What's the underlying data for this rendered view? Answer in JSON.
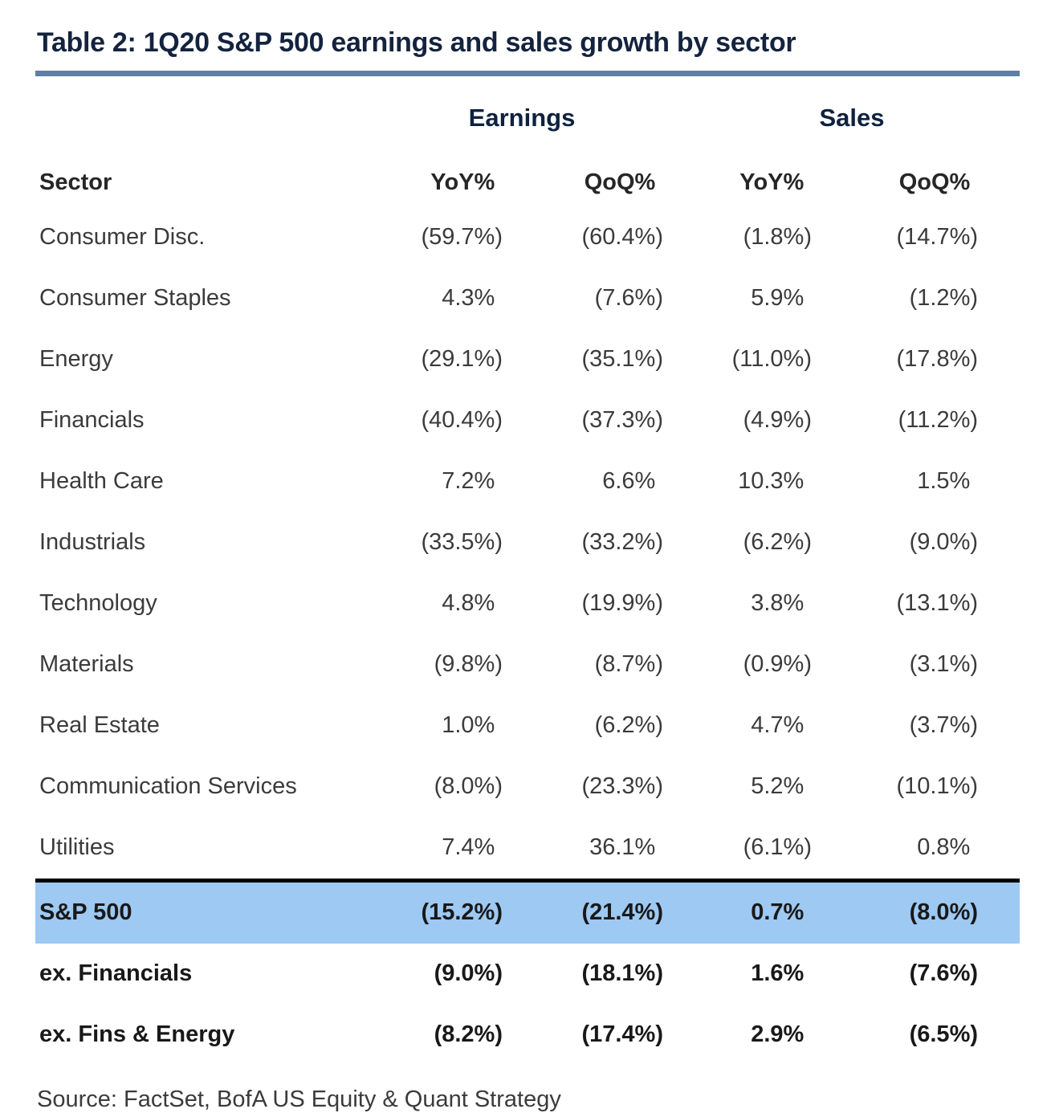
{
  "page": {
    "title": "Table 2: 1Q20 S&P 500 earnings and sales growth by sector",
    "source": "Source: FactSet, BofA US Equity & Quant Strategy"
  },
  "table": {
    "group_headers": [
      "Earnings",
      "Sales"
    ],
    "columns": [
      "Sector",
      "YoY%",
      "QoQ%",
      "YoY%",
      "QoQ%"
    ],
    "rows": [
      {
        "sector": "Consumer Disc.",
        "values": [
          "(59.7%)",
          "(60.4%)",
          "(1.8%)",
          "(14.7%)"
        ],
        "style": "normal"
      },
      {
        "sector": "Consumer Staples",
        "values": [
          "4.3%",
          "(7.6%)",
          "5.9%",
          "(1.2%)"
        ],
        "style": "normal"
      },
      {
        "sector": "Energy",
        "values": [
          "(29.1%)",
          "(35.1%)",
          "(11.0%)",
          "(17.8%)"
        ],
        "style": "normal"
      },
      {
        "sector": "Financials",
        "values": [
          "(40.4%)",
          "(37.3%)",
          "(4.9%)",
          "(11.2%)"
        ],
        "style": "normal"
      },
      {
        "sector": "Health Care",
        "values": [
          "7.2%",
          "6.6%",
          "10.3%",
          "1.5%"
        ],
        "style": "normal"
      },
      {
        "sector": "Industrials",
        "values": [
          "(33.5%)",
          "(33.2%)",
          "(6.2%)",
          "(9.0%)"
        ],
        "style": "normal"
      },
      {
        "sector": "Technology",
        "values": [
          "4.8%",
          "(19.9%)",
          "3.8%",
          "(13.1%)"
        ],
        "style": "normal"
      },
      {
        "sector": "Materials",
        "values": [
          "(9.8%)",
          "(8.7%)",
          "(0.9%)",
          "(3.1%)"
        ],
        "style": "normal"
      },
      {
        "sector": "Real Estate",
        "values": [
          "1.0%",
          "(6.2%)",
          "4.7%",
          "(3.7%)"
        ],
        "style": "normal"
      },
      {
        "sector": "Communication Services",
        "values": [
          "(8.0%)",
          "(23.3%)",
          "5.2%",
          "(10.1%)"
        ],
        "style": "normal"
      },
      {
        "sector": "Utilities",
        "values": [
          "7.4%",
          "36.1%",
          "(6.1%)",
          "0.8%"
        ],
        "style": "normal"
      },
      {
        "sector": "S&P 500",
        "values": [
          "(15.2%)",
          "(21.4%)",
          "0.7%",
          "(8.0%)"
        ],
        "style": "highlight"
      },
      {
        "sector": "ex. Financials",
        "values": [
          "(9.0%)",
          "(18.1%)",
          "1.6%",
          "(7.6%)"
        ],
        "style": "bold"
      },
      {
        "sector": "ex. Fins & Energy",
        "values": [
          "(8.2%)",
          "(17.4%)",
          "2.9%",
          "(6.5%)"
        ],
        "style": "bold"
      }
    ]
  },
  "colors": {
    "title_navy": "#14233e",
    "group_header_navy": "#0e2240",
    "rule_blue": "#5e7ea6",
    "highlight_blue": "#9dc9f3",
    "highlight_border": "#000000",
    "body_text": "#3b3b3b"
  },
  "chart_data": {
    "type": "table",
    "title": "Table 2: 1Q20 S&P 500 earnings and sales growth by sector",
    "column_groups": [
      "Earnings",
      "Sales"
    ],
    "columns": [
      "Sector",
      "Earnings YoY%",
      "Earnings QoQ%",
      "Sales YoY%",
      "Sales QoQ%"
    ],
    "units": "percent, parentheses denote negative values",
    "rows": [
      {
        "sector": "Consumer Disc.",
        "earnings_yoy": -59.7,
        "earnings_qoq": -60.4,
        "sales_yoy": -1.8,
        "sales_qoq": -14.7
      },
      {
        "sector": "Consumer Staples",
        "earnings_yoy": 4.3,
        "earnings_qoq": -7.6,
        "sales_yoy": 5.9,
        "sales_qoq": -1.2
      },
      {
        "sector": "Energy",
        "earnings_yoy": -29.1,
        "earnings_qoq": -35.1,
        "sales_yoy": -11.0,
        "sales_qoq": -17.8
      },
      {
        "sector": "Financials",
        "earnings_yoy": -40.4,
        "earnings_qoq": -37.3,
        "sales_yoy": -4.9,
        "sales_qoq": -11.2
      },
      {
        "sector": "Health Care",
        "earnings_yoy": 7.2,
        "earnings_qoq": 6.6,
        "sales_yoy": 10.3,
        "sales_qoq": 1.5
      },
      {
        "sector": "Industrials",
        "earnings_yoy": -33.5,
        "earnings_qoq": -33.2,
        "sales_yoy": -6.2,
        "sales_qoq": -9.0
      },
      {
        "sector": "Technology",
        "earnings_yoy": 4.8,
        "earnings_qoq": -19.9,
        "sales_yoy": 3.8,
        "sales_qoq": -13.1
      },
      {
        "sector": "Materials",
        "earnings_yoy": -9.8,
        "earnings_qoq": -8.7,
        "sales_yoy": -0.9,
        "sales_qoq": -3.1
      },
      {
        "sector": "Real Estate",
        "earnings_yoy": 1.0,
        "earnings_qoq": -6.2,
        "sales_yoy": 4.7,
        "sales_qoq": -3.7
      },
      {
        "sector": "Communication Services",
        "earnings_yoy": -8.0,
        "earnings_qoq": -23.3,
        "sales_yoy": 5.2,
        "sales_qoq": -10.1
      },
      {
        "sector": "Utilities",
        "earnings_yoy": 7.4,
        "earnings_qoq": 36.1,
        "sales_yoy": -6.1,
        "sales_qoq": 0.8
      },
      {
        "sector": "S&P 500",
        "earnings_yoy": -15.2,
        "earnings_qoq": -21.4,
        "sales_yoy": 0.7,
        "sales_qoq": -8.0
      },
      {
        "sector": "ex. Financials",
        "earnings_yoy": -9.0,
        "earnings_qoq": -18.1,
        "sales_yoy": 1.6,
        "sales_qoq": -7.6
      },
      {
        "sector": "ex. Fins & Energy",
        "earnings_yoy": -8.2,
        "earnings_qoq": -17.4,
        "sales_yoy": 2.9,
        "sales_qoq": -6.5
      }
    ],
    "source": "Source: FactSet, BofA US Equity & Quant Strategy",
    "layout": {
      "highlighted_row": "S&P 500",
      "bold_rows": [
        "S&P 500",
        "ex. Financials",
        "ex. Fins & Energy"
      ],
      "grid": "off"
    }
  }
}
